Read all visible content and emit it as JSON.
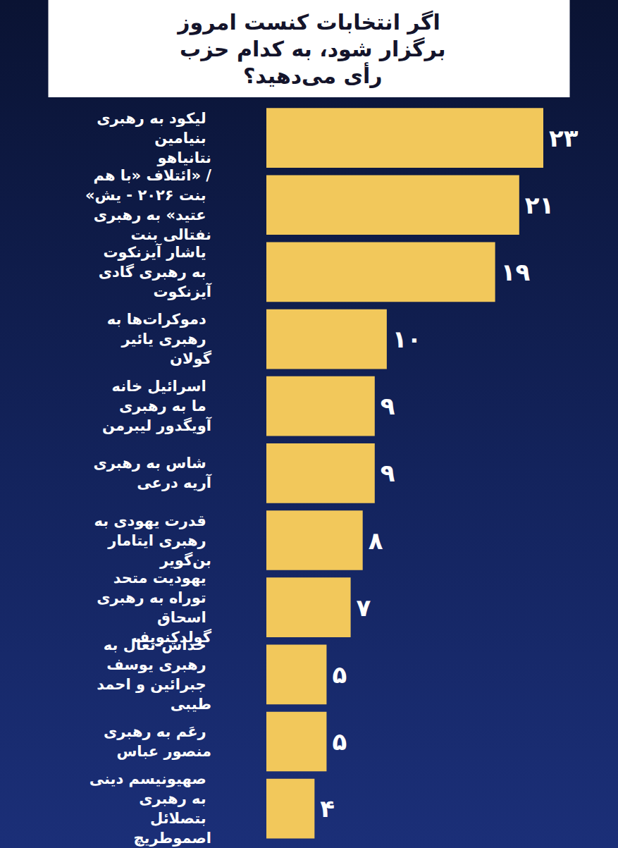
{
  "chart_data": {
    "type": "bar",
    "orientation": "horizontal",
    "title": "اگر انتخابات کنست امروز برگزار شود، به کدام حزب رأی می‌دهید؟",
    "categories": [
      "لیکود به رهبری بنیامین نتانیاهو",
      "ائتلاف «با هم» / «بنت ۲۰۲۶ - یش عتید» به رهبری نفتالی بنت",
      "یاشار آیزنکوت به رهبری گادی آیزنکوت",
      "دموکرات‌ها به رهبری یائیر گولان",
      "اسرائیل خانه ما به رهبری آویگدور لیبرمن",
      "شاس به رهبری آریه درعی",
      "قدرت یهودی به رهبری ایتامار بن‌گویر",
      "یهودیت متحد توراه به رهبری اسحاق گولدکنوپف",
      "خداش-تعال به رهبری یوسف جبرائین و احمد طیبی",
      "رعَم به رهبری منصور عباس",
      "صهیونیسم دینی به رهبری بتصلائل اصموطریچ"
    ],
    "values": [
      23,
      21,
      19,
      10,
      9,
      9,
      8,
      7,
      5,
      5,
      4
    ],
    "value_labels": [
      "۲۳",
      "۲۱",
      "۱۹",
      "۱۰",
      "۹",
      "۹",
      "۸",
      "۷",
      "۵",
      "۵",
      "۴"
    ],
    "color": "#f2c85b",
    "xlim": [
      0,
      23
    ],
    "data_labels": true,
    "tick_labels": false,
    "grid": false
  }
}
